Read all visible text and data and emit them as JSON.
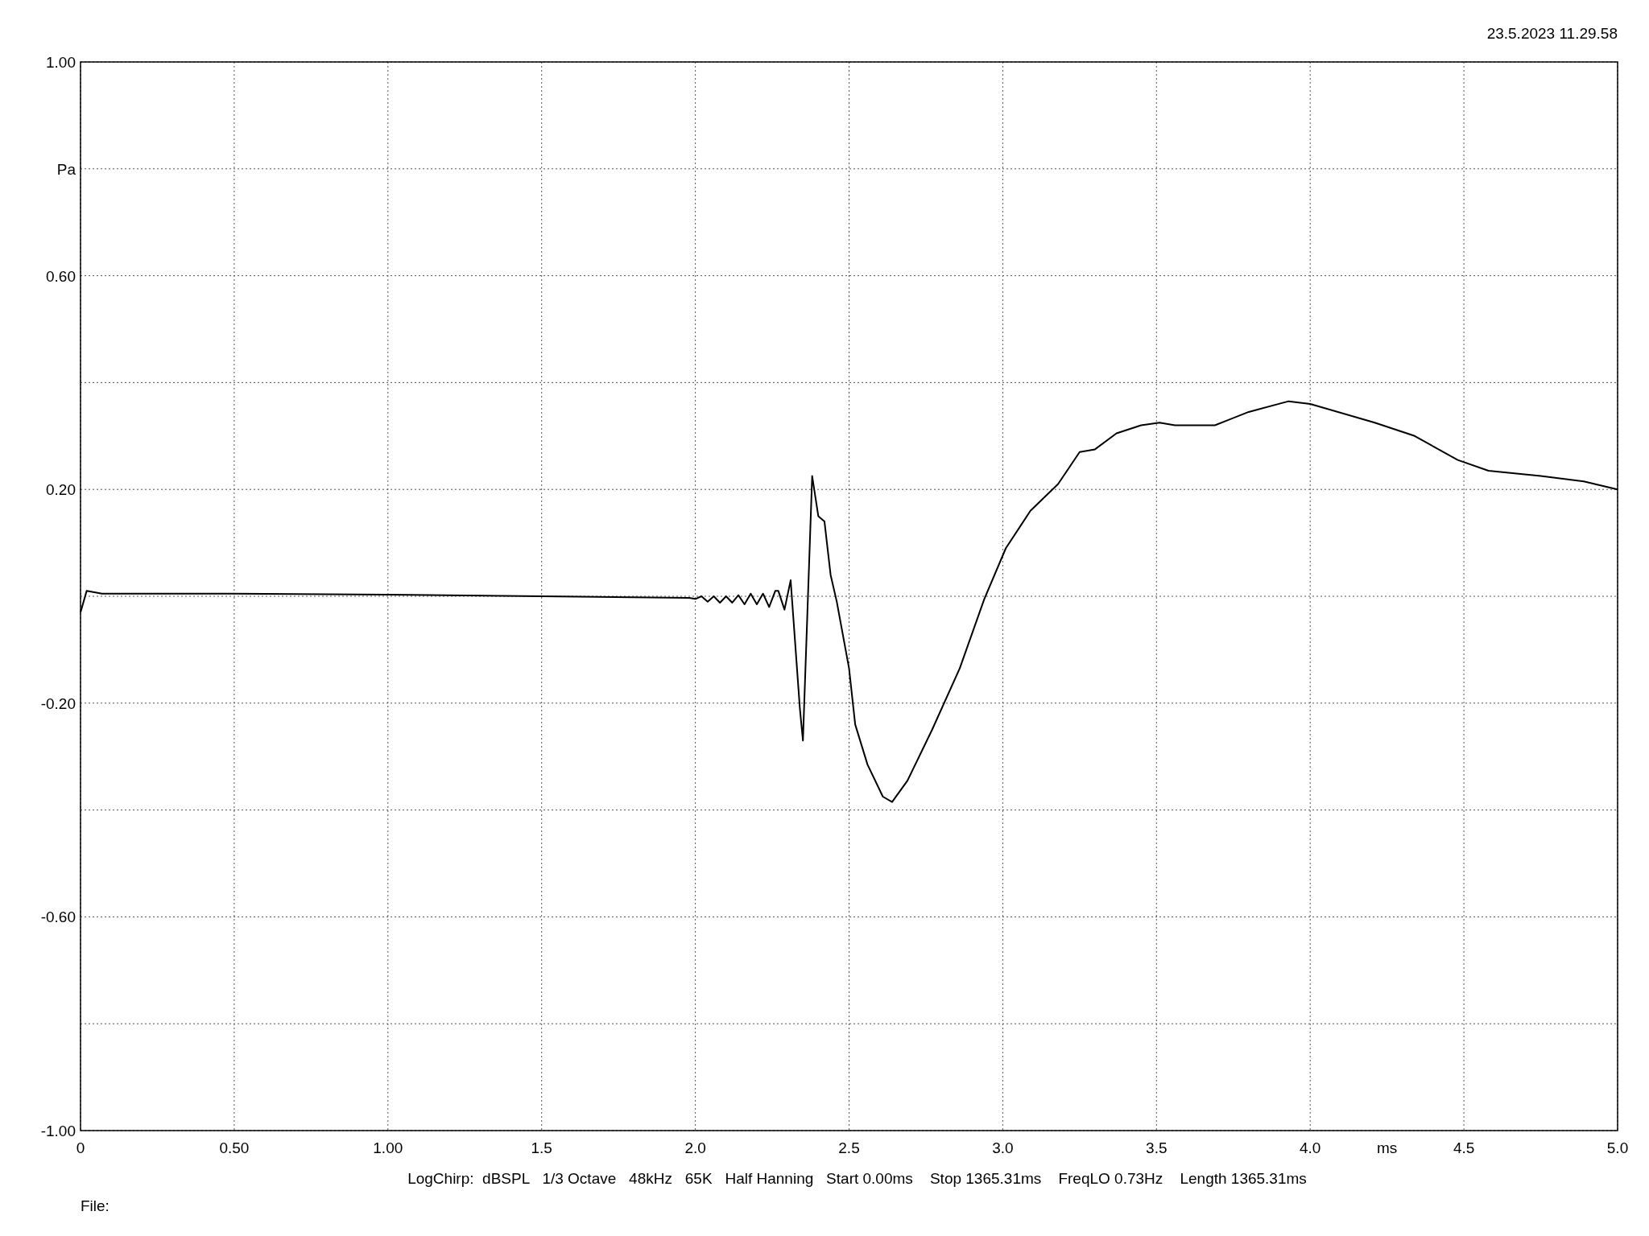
{
  "chart_data": {
    "type": "line",
    "xlabel": "ms",
    "ylabel": "Pa",
    "xlim": [
      0,
      5
    ],
    "ylim": [
      -1,
      1
    ],
    "xticks": [
      0,
      {
        "value": 0.5,
        "label": "0.50"
      },
      {
        "value": 1,
        "label": "1.00"
      },
      1.5,
      {
        "value": 2,
        "label": "2.0"
      },
      2.5,
      {
        "value": 3,
        "label": "3.0"
      },
      3.5,
      {
        "value": 4,
        "label": "4.0"
      },
      4.5,
      {
        "value": 5,
        "label": "5.0"
      }
    ],
    "yticks": [
      {
        "value": -1,
        "label": "-1.00"
      },
      {
        "value": -0.8,
        "label": null
      },
      {
        "value": -0.6,
        "label": "-0.60"
      },
      {
        "value": -0.4,
        "label": null
      },
      {
        "value": -0.2,
        "label": "-0.20"
      },
      {
        "value": 0,
        "label": null
      },
      {
        "value": 0.2,
        "label": "0.20"
      },
      {
        "value": 0.4,
        "label": null
      },
      {
        "value": 0.6,
        "label": "0.60"
      },
      {
        "value": 0.8,
        "label": null
      },
      {
        "value": 1,
        "label": "1.00"
      }
    ],
    "grid": true,
    "line_style": "solid",
    "marker": "none",
    "annotations": [
      "23.5.2023 11.29.58",
      "LogChirp:  dBSPL   1/3 Octave   48kHz   65K   Half Hanning   Start 0.00ms    Stop 1365.31ms    FreqLO 0.73Hz    Length 1365.31ms",
      "File:"
    ],
    "series": [
      {
        "color": "#000000",
        "x": [
          0,
          0.02,
          0.07,
          0.5,
          1,
          1.5,
          1.98,
          2,
          2.02,
          2.04,
          2.06,
          2.08,
          2.1,
          2.12,
          2.14,
          2.16,
          2.18,
          2.2,
          2.22,
          2.24,
          2.26,
          2.27,
          2.29,
          2.31,
          2.34,
          2.35,
          2.38,
          2.4,
          2.42,
          2.44,
          2.46,
          2.5,
          2.52,
          2.56,
          2.61,
          2.64,
          2.69,
          2.77,
          2.86,
          2.94,
          3.01,
          3.09,
          3.18,
          3.25,
          3.3,
          3.37,
          3.45,
          3.51,
          3.56,
          3.69,
          3.8,
          3.93,
          4,
          4.21,
          4.34,
          4.48,
          4.58,
          4.75,
          4.89,
          5
        ],
        "values": [
          -0.03,
          0.01,
          0.005,
          0.005,
          0.003,
          0,
          -0.003,
          -0.005,
          0,
          -0.01,
          0,
          -0.012,
          0,
          -0.012,
          0.002,
          -0.015,
          0.005,
          -0.015,
          0.005,
          -0.02,
          0.01,
          0.01,
          -0.025,
          0.03,
          -0.21,
          -0.27,
          0.225,
          0.15,
          0.14,
          0.04,
          -0.01,
          -0.135,
          -0.24,
          -0.315,
          -0.375,
          -0.385,
          -0.345,
          -0.25,
          -0.135,
          -0.005,
          0.09,
          0.16,
          0.21,
          0.27,
          0.275,
          0.305,
          0.32,
          0.325,
          0.32,
          0.32,
          0.345,
          0.365,
          0.36,
          0.325,
          0.3,
          0.255,
          0.235,
          0.225,
          0.215,
          0.2
        ]
      }
    ]
  }
}
